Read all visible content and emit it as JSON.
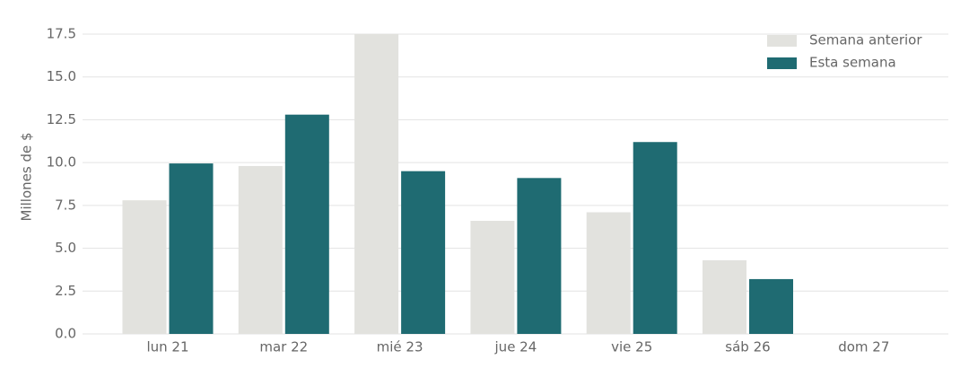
{
  "chart_data": {
    "type": "bar",
    "y_label": "Millones de $",
    "categories": [
      "lun 21",
      "mar 22",
      "mié 23",
      "jue 24",
      "vie 25",
      "sáb 26",
      "dom 27"
    ],
    "series": [
      {
        "name": "Semana anterior",
        "color": "#e2e2de",
        "values": [
          7.8,
          9.8,
          17.5,
          6.6,
          7.1,
          4.3,
          null
        ]
      },
      {
        "name": "Esta semana",
        "color": "#1f6b72",
        "values": [
          9.95,
          12.8,
          9.5,
          9.1,
          11.2,
          3.2,
          null
        ]
      }
    ],
    "ylim": [
      0,
      17.5
    ],
    "yticks": [
      {
        "value": 0,
        "label": "0.0"
      },
      2.5,
      {
        "value": 5,
        "label": "5.0"
      },
      7.5,
      {
        "value": 10,
        "label": "10.0"
      },
      12.5,
      {
        "value": 15,
        "label": "15.0"
      },
      17.5
    ],
    "grid": true,
    "legend": "upper right"
  }
}
